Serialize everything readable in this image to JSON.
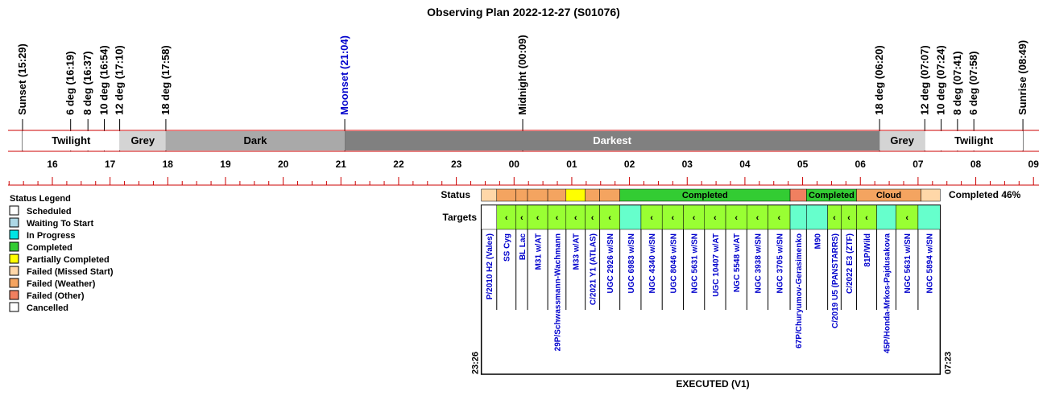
{
  "chart_data": {
    "type": "timeline",
    "title": "Observing Plan 2022-12-27 (S01076)",
    "events": [
      {
        "label": "Sunset (15:29)",
        "time": "15:29",
        "color": "#000000"
      },
      {
        "label": "6 deg (16:19)",
        "time": "16:19",
        "color": "#000000"
      },
      {
        "label": "8 deg (16:37)",
        "time": "16:37",
        "color": "#000000"
      },
      {
        "label": "10 deg (16:54)",
        "time": "16:54",
        "color": "#000000"
      },
      {
        "label": "12 deg (17:10)",
        "time": "17:10",
        "color": "#000000"
      },
      {
        "label": "18 deg (17:58)",
        "time": "17:58",
        "color": "#000000"
      },
      {
        "label": "Moonset (21:04)",
        "time": "21:04",
        "color": "#0000cc"
      },
      {
        "label": "Midnight (00:09)",
        "time": "00:09",
        "color": "#000000"
      },
      {
        "label": "18 deg (06:20)",
        "time": "06:20",
        "color": "#000000"
      },
      {
        "label": "12 deg (07:07)",
        "time": "07:07",
        "color": "#000000"
      },
      {
        "label": "10 deg (07:24)",
        "time": "07:24",
        "color": "#000000"
      },
      {
        "label": "8 deg (07:41)",
        "time": "07:41",
        "color": "#000000"
      },
      {
        "label": "6 deg (07:58)",
        "time": "07:58",
        "color": "#000000"
      },
      {
        "label": "Sunrise (08:49)",
        "time": "08:49",
        "color": "#000000"
      }
    ],
    "bands": [
      {
        "label": "Twilight",
        "start": "15:29",
        "end": "17:10",
        "color": "#ffffff",
        "text_color": "#000000"
      },
      {
        "label": "Grey",
        "start": "17:10",
        "end": "17:58",
        "color": "#d4d4d4",
        "text_color": "#000000"
      },
      {
        "label": "Dark",
        "start": "17:58",
        "end": "21:04",
        "color": "#a9a9a9",
        "text_color": "#000000"
      },
      {
        "label": "Darkest",
        "start": "21:04",
        "end": "06:20",
        "color": "#808080",
        "text_color": "#ffffff"
      },
      {
        "label": "Grey",
        "start": "06:20",
        "end": "07:07",
        "color": "#d4d4d4",
        "text_color": "#000000"
      },
      {
        "label": "Twilight",
        "start": "07:07",
        "end": "08:49",
        "color": "#ffffff",
        "text_color": "#000000"
      }
    ],
    "hour_ticks": [
      "16",
      "17",
      "18",
      "19",
      "20",
      "21",
      "22",
      "23",
      "00",
      "01",
      "02",
      "03",
      "04",
      "05",
      "06",
      "07",
      "08",
      "09"
    ],
    "legend_title": "Status Legend",
    "legend": [
      {
        "label": "Scheduled",
        "color": "#ffffff"
      },
      {
        "label": "Waiting To Start",
        "color": "#add8e6"
      },
      {
        "label": "In Progress",
        "color": "#00e5e5"
      },
      {
        "label": "Completed",
        "color": "#33cc33"
      },
      {
        "label": "Partially Completed",
        "color": "#ffff00"
      },
      {
        "label": "Failed (Missed Start)",
        "color": "#ffd7a8"
      },
      {
        "label": "Failed (Weather)",
        "color": "#f4a460"
      },
      {
        "label": "Failed (Other)",
        "color": "#f08060"
      },
      {
        "label": "Cancelled",
        "color": "#ffffff"
      }
    ],
    "status_label": "Status",
    "targets_label": "Targets",
    "completed_summary": "Completed 46%",
    "status_segments": [
      {
        "start": "23:26",
        "end": "23:42",
        "color": "#ffd7a8",
        "label": ""
      },
      {
        "start": "23:42",
        "end": "00:02",
        "color": "#f4a460",
        "label": ""
      },
      {
        "start": "00:02",
        "end": "00:14",
        "color": "#f4a460",
        "label": ""
      },
      {
        "start": "00:14",
        "end": "00:35",
        "color": "#f4a460",
        "label": ""
      },
      {
        "start": "00:35",
        "end": "00:54",
        "color": "#f4a460",
        "label": ""
      },
      {
        "start": "00:54",
        "end": "01:14",
        "color": "#ffff00",
        "label": ""
      },
      {
        "start": "01:14",
        "end": "01:29",
        "color": "#f4a460",
        "label": ""
      },
      {
        "start": "01:29",
        "end": "01:50",
        "color": "#f4a460",
        "label": ""
      },
      {
        "start": "01:50",
        "end": "04:47",
        "color": "#33cc33",
        "label": "Completed"
      },
      {
        "start": "04:47",
        "end": "05:04",
        "color": "#f08060",
        "label": ""
      },
      {
        "start": "05:04",
        "end": "05:56",
        "color": "#33cc33",
        "label": "Completed"
      },
      {
        "start": "05:56",
        "end": "07:03",
        "color": "#f4a460",
        "label": "Cloud"
      },
      {
        "start": "07:03",
        "end": "07:23",
        "color": "#ffd7a8",
        "label": ""
      }
    ],
    "targets": [
      {
        "name": "P/2010 H2 (Vales)",
        "start": "23:26",
        "end": "23:42",
        "color": "#ffffff",
        "mark": ""
      },
      {
        "name": "SS Cyg",
        "start": "23:42",
        "end": "00:02",
        "color": "#99ff33",
        "mark": "‹"
      },
      {
        "name": "BL Lac",
        "start": "00:02",
        "end": "00:14",
        "color": "#99ff33",
        "mark": "‹"
      },
      {
        "name": "M31 w/AT",
        "start": "00:14",
        "end": "00:35",
        "color": "#99ff33",
        "mark": "‹"
      },
      {
        "name": "29P/Schwassmann-Wachmann",
        "start": "00:35",
        "end": "00:54",
        "color": "#99ff33",
        "mark": "‹"
      },
      {
        "name": "M33 w/AT",
        "start": "00:54",
        "end": "01:14",
        "color": "#99ff33",
        "mark": "‹"
      },
      {
        "name": "C/2021 Y1 (ATLAS)",
        "start": "01:14",
        "end": "01:29",
        "color": "#99ff33",
        "mark": "‹"
      },
      {
        "name": "UGC 2926 w/SN",
        "start": "01:29",
        "end": "01:50",
        "color": "#99ff33",
        "mark": "‹"
      },
      {
        "name": "UGC 6983 w/SN",
        "start": "01:50",
        "end": "02:12",
        "color": "#66ffcc",
        "mark": ""
      },
      {
        "name": "NGC 4340 w/SN",
        "start": "02:12",
        "end": "02:34",
        "color": "#99ff33",
        "mark": "‹"
      },
      {
        "name": "UGC 8046 w/SN",
        "start": "02:34",
        "end": "02:56",
        "color": "#99ff33",
        "mark": "‹"
      },
      {
        "name": "NGC 5631 w/SN",
        "start": "02:56",
        "end": "03:18",
        "color": "#99ff33",
        "mark": "‹"
      },
      {
        "name": "UGC 10407 w/AT",
        "start": "03:18",
        "end": "03:40",
        "color": "#99ff33",
        "mark": "‹"
      },
      {
        "name": "NGC 5548 w/AT",
        "start": "03:40",
        "end": "04:02",
        "color": "#99ff33",
        "mark": "‹"
      },
      {
        "name": "NGC 3938 w/SN",
        "start": "04:02",
        "end": "04:24",
        "color": "#99ff33",
        "mark": "‹"
      },
      {
        "name": "NGC 3705 w/SN",
        "start": "04:24",
        "end": "04:47",
        "color": "#99ff33",
        "mark": "‹"
      },
      {
        "name": "67P/Churyumov-Gerasimenko",
        "start": "04:47",
        "end": "05:04",
        "color": "#66ffcc",
        "mark": ""
      },
      {
        "name": "M90",
        "start": "05:04",
        "end": "05:26",
        "color": "#66ffcc",
        "mark": ""
      },
      {
        "name": "C/2019 U5 (PANSTARRS)",
        "start": "05:26",
        "end": "05:40",
        "color": "#99ff33",
        "mark": "‹"
      },
      {
        "name": "C/2022 E3 (ZTF)",
        "start": "05:40",
        "end": "05:56",
        "color": "#99ff33",
        "mark": "‹"
      },
      {
        "name": "81P/Wild",
        "start": "05:56",
        "end": "06:17",
        "color": "#99ff33",
        "mark": "‹"
      },
      {
        "name": "45P/Honda-Mrkos-Pajdusakova",
        "start": "06:17",
        "end": "06:37",
        "color": "#66ffcc",
        "mark": ""
      },
      {
        "name": "NGC 5631 w/SN",
        "start": "06:37",
        "end": "07:00",
        "color": "#99ff33",
        "mark": "‹"
      },
      {
        "name": "NGC 5894 w/SN",
        "start": "07:00",
        "end": "07:23",
        "color": "#66ffcc",
        "mark": ""
      }
    ],
    "start_time": "23:26",
    "end_time": "07:23",
    "footer": "EXECUTED (V1)"
  }
}
